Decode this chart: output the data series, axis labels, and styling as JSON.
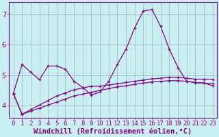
{
  "xlabel": "Windchill (Refroidissement éolien,°C)",
  "background_color": "#c8f0f0",
  "line_color": "#880088",
  "grid_color": "#aaaacc",
  "ylim": [
    3.6,
    7.4
  ],
  "xlim": [
    -0.5,
    23.5
  ],
  "xticks": [
    0,
    1,
    2,
    3,
    4,
    5,
    6,
    7,
    8,
    9,
    10,
    11,
    12,
    13,
    14,
    15,
    16,
    17,
    18,
    19,
    20,
    21,
    22,
    23
  ],
  "yticks": [
    4,
    5,
    6,
    7
  ],
  "series": [
    {
      "x": [
        0,
        1,
        2,
        3,
        4,
        5,
        6,
        7,
        8,
        9,
        10,
        11,
        12,
        13,
        14,
        15,
        16,
        17,
        18,
        19,
        20,
        21,
        22,
        23
      ],
      "y": [
        4.4,
        5.35,
        5.1,
        4.85,
        5.3,
        5.3,
        5.2,
        4.8,
        4.6,
        4.35,
        4.45,
        4.8,
        5.35,
        5.85,
        6.55,
        7.1,
        7.15,
        6.6,
        5.85,
        5.25,
        4.8,
        4.75,
        4.75,
        4.65
      ]
    },
    {
      "x": [
        0,
        1,
        2,
        3,
        4,
        5,
        6,
        7,
        8,
        9,
        10,
        11,
        12,
        13,
        14,
        15,
        16,
        17,
        18,
        19,
        20,
        21,
        22,
        23
      ],
      "y": [
        4.4,
        3.72,
        3.82,
        3.92,
        4.02,
        4.12,
        4.22,
        4.32,
        4.38,
        4.44,
        4.5,
        4.56,
        4.62,
        4.65,
        4.7,
        4.74,
        4.78,
        4.8,
        4.82,
        4.82,
        4.8,
        4.76,
        4.74,
        4.72
      ]
    },
    {
      "x": [
        0,
        1,
        2,
        3,
        4,
        5,
        6,
        7,
        8,
        9,
        10,
        11,
        12,
        13,
        14,
        15,
        16,
        17,
        18,
        19,
        20,
        21,
        22,
        23
      ],
      "y": [
        4.4,
        3.72,
        3.87,
        4.02,
        4.17,
        4.32,
        4.42,
        4.52,
        4.58,
        4.64,
        4.64,
        4.68,
        4.72,
        4.76,
        4.8,
        4.84,
        4.88,
        4.9,
        4.93,
        4.93,
        4.9,
        4.87,
        4.87,
        4.87
      ]
    }
  ],
  "font_color": "#880088",
  "tick_fontsize": 6.5,
  "label_fontsize": 7.5
}
